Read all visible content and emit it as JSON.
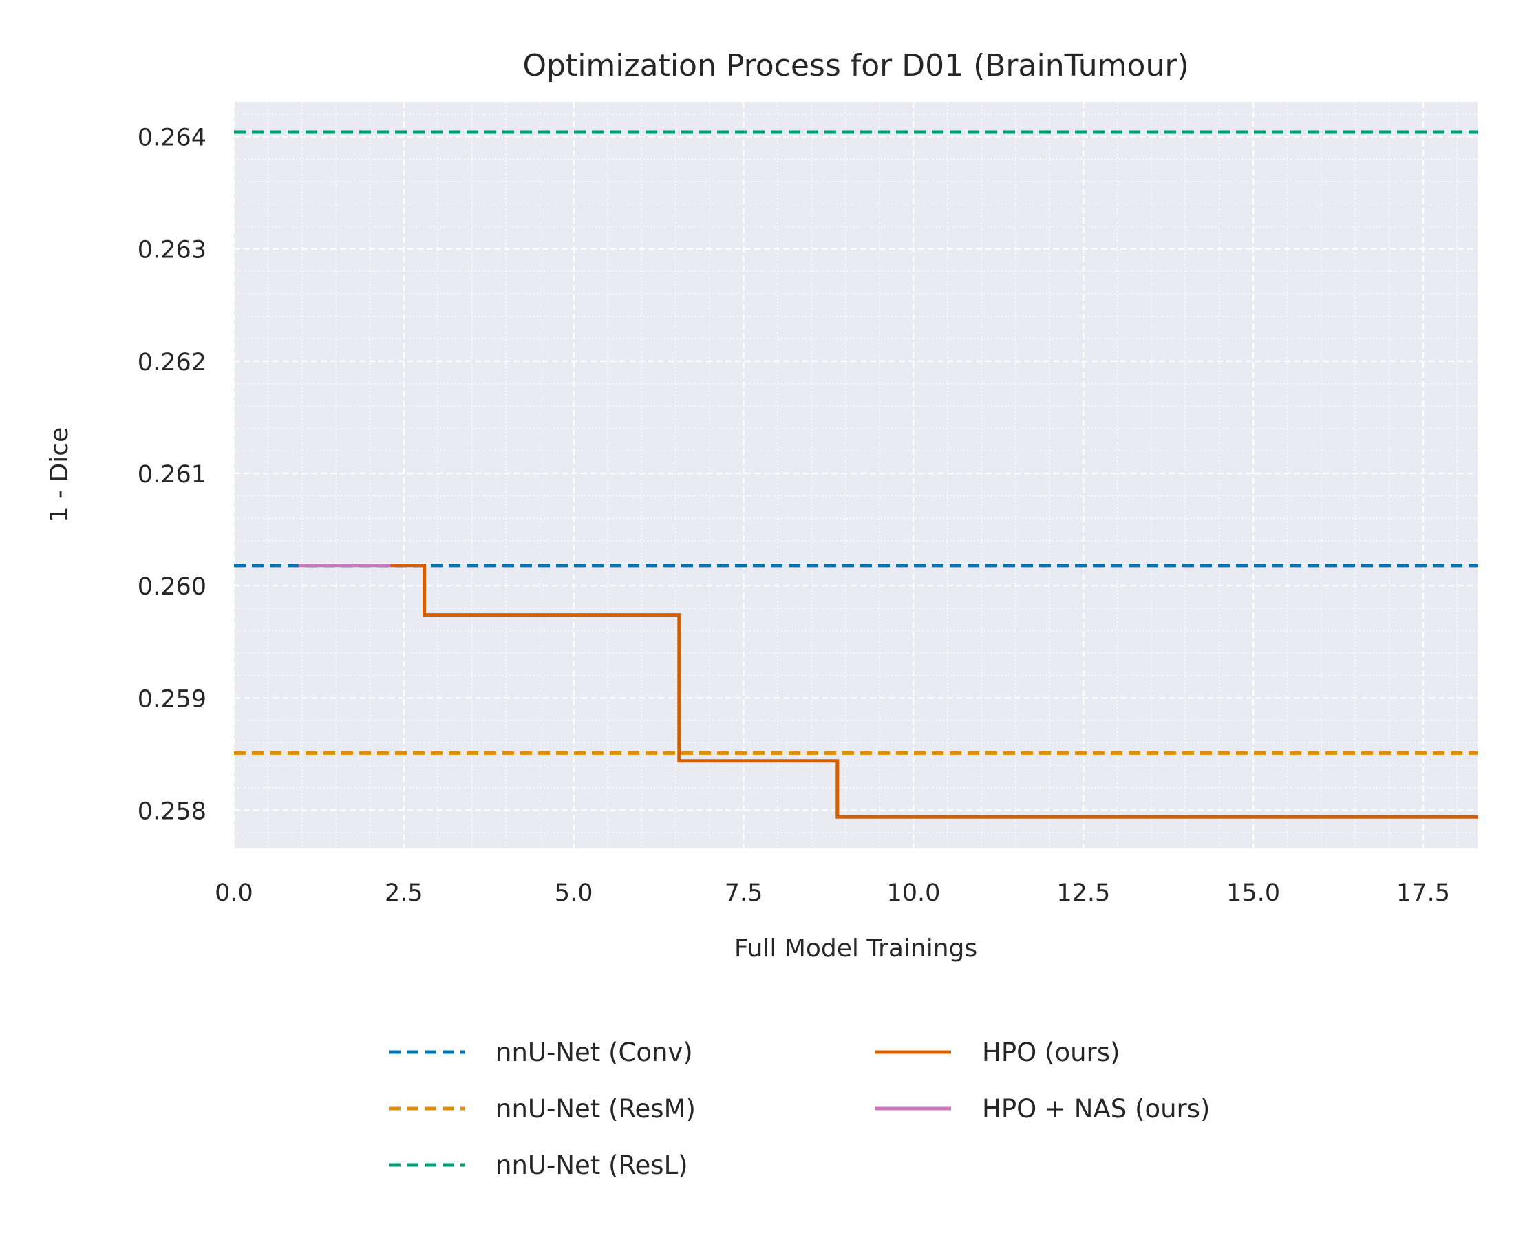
{
  "chart_data": {
    "type": "line",
    "title": "Optimization Process for D01 (BrainTumour)",
    "xlabel": "Full Model Trainings",
    "ylabel": "1 - Dice",
    "xlim": [
      0.0,
      18.3
    ],
    "ylim": [
      0.25766,
      0.26431
    ],
    "xticks": [
      0.0,
      2.5,
      5.0,
      7.5,
      10.0,
      12.5,
      15.0,
      17.5
    ],
    "xtick_labels": [
      "0.0",
      "2.5",
      "5.0",
      "7.5",
      "10.0",
      "12.5",
      "15.0",
      "17.5"
    ],
    "yticks": [
      0.258,
      0.259,
      0.26,
      0.261,
      0.262,
      0.263,
      0.264
    ],
    "ytick_labels": [
      "0.258",
      "0.259",
      "0.260",
      "0.261",
      "0.262",
      "0.263",
      "0.264"
    ],
    "grid": true,
    "legend_position": "below",
    "legend": [
      [
        "nnU-Net (Conv)",
        "nnU-Net (ResM)",
        "nnU-Net (ResL)"
      ],
      [
        "HPO (ours)",
        "HPO + NAS (ours)"
      ]
    ],
    "series": [
      {
        "name": "nnU-Net (Conv)",
        "style": "dashed",
        "color": "#0173b2",
        "y": 0.26018
      },
      {
        "name": "nnU-Net (ResM)",
        "style": "dashed",
        "color": "#de8f05",
        "y": 0.25851
      },
      {
        "name": "nnU-Net (ResL)",
        "style": "dashed",
        "color": "#029e73",
        "y": 0.26404
      },
      {
        "name": "HPO (ours)",
        "style": "step",
        "color": "#d55e00",
        "points": [
          [
            2.3,
            0.26018
          ],
          [
            2.8,
            0.26018
          ],
          [
            2.8,
            0.25974
          ],
          [
            6.55,
            0.25974
          ],
          [
            6.55,
            0.25844
          ],
          [
            8.88,
            0.25844
          ],
          [
            8.88,
            0.25794
          ],
          [
            18.3,
            0.25794
          ]
        ]
      },
      {
        "name": "HPO + NAS (ours)",
        "style": "step",
        "color": "#cc78bc",
        "points": [
          [
            0.95,
            0.26018
          ],
          [
            2.3,
            0.26018
          ]
        ]
      }
    ]
  }
}
